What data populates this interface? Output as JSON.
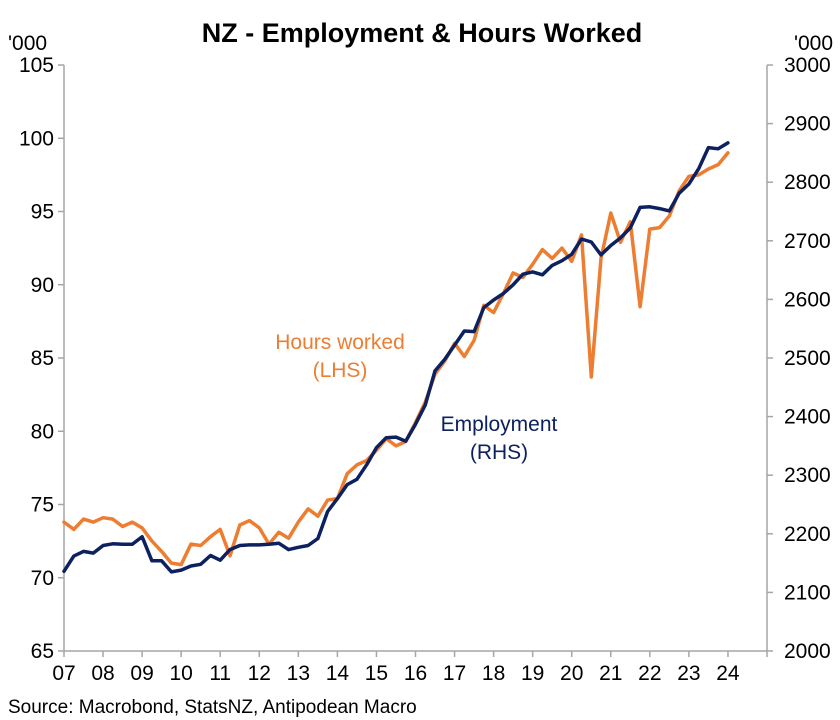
{
  "chart_data": {
    "type": "line",
    "title": "NZ - Employment & Hours Worked",
    "y_left": {
      "unit": "'000",
      "min": 65,
      "max": 105,
      "ticks": [
        65,
        70,
        75,
        80,
        85,
        90,
        95,
        100,
        105
      ]
    },
    "y_right": {
      "unit": "'000",
      "min": 2000,
      "max": 3000,
      "ticks": [
        2000,
        2100,
        2200,
        2300,
        2400,
        2500,
        2600,
        2700,
        2800,
        2900,
        3000
      ]
    },
    "x": {
      "min": 2007.0,
      "max": 2025.0,
      "tick_labels": [
        "07",
        "08",
        "09",
        "10",
        "11",
        "12",
        "13",
        "14",
        "15",
        "16",
        "17",
        "18",
        "19",
        "20",
        "21",
        "22",
        "23",
        "24"
      ]
    },
    "grid": false,
    "colors": {
      "hours": "#ED7D31",
      "employment": "#0D2160"
    },
    "annotations": {
      "hours": [
        "Hours worked",
        "(LHS)"
      ],
      "employment": [
        "Employment",
        "(RHS)"
      ]
    },
    "series": [
      {
        "name": "Hours worked (LHS)",
        "axis": "left",
        "x": [
          2007.0,
          2007.25,
          2007.5,
          2007.75,
          2008.0,
          2008.25,
          2008.5,
          2008.75,
          2009.0,
          2009.25,
          2009.5,
          2009.75,
          2010.0,
          2010.25,
          2010.5,
          2010.75,
          2011.0,
          2011.25,
          2011.5,
          2011.75,
          2012.0,
          2012.25,
          2012.5,
          2012.75,
          2013.0,
          2013.25,
          2013.5,
          2013.75,
          2014.0,
          2014.25,
          2014.5,
          2014.75,
          2015.0,
          2015.25,
          2015.5,
          2015.75,
          2016.0,
          2016.25,
          2016.5,
          2016.75,
          2017.0,
          2017.25,
          2017.5,
          2017.75,
          2018.0,
          2018.25,
          2018.5,
          2018.75,
          2019.0,
          2019.25,
          2019.5,
          2019.75,
          2020.0,
          2020.25,
          2020.5,
          2020.75,
          2021.0,
          2021.25,
          2021.5,
          2021.75,
          2022.0,
          2022.25,
          2022.5,
          2022.75,
          2023.0,
          2023.25,
          2023.5,
          2023.75,
          2024.0
        ],
        "values": [
          73.8,
          73.3,
          74.0,
          73.8,
          74.1,
          74.0,
          73.5,
          73.8,
          73.4,
          72.5,
          71.8,
          71.0,
          70.9,
          72.3,
          72.2,
          72.8,
          73.3,
          71.5,
          73.6,
          73.9,
          73.4,
          72.3,
          73.1,
          72.7,
          73.8,
          74.7,
          74.2,
          75.3,
          75.4,
          77.1,
          77.7,
          78.0,
          78.7,
          79.5,
          79.0,
          79.3,
          80.6,
          82.0,
          83.9,
          84.8,
          86.0,
          85.1,
          86.2,
          88.6,
          88.1,
          89.4,
          90.8,
          90.5,
          91.4,
          92.4,
          91.8,
          92.5,
          91.6,
          93.4,
          83.7,
          91.8,
          94.9,
          92.9,
          94.3,
          88.5,
          93.8,
          93.9,
          94.7,
          96.4,
          97.4,
          97.5,
          97.9,
          98.2,
          99.0
        ]
      },
      {
        "name": "Employment (RHS)",
        "axis": "right",
        "x": [
          2007.0,
          2007.25,
          2007.5,
          2007.75,
          2008.0,
          2008.25,
          2008.5,
          2008.75,
          2009.0,
          2009.25,
          2009.5,
          2009.75,
          2010.0,
          2010.25,
          2010.5,
          2010.75,
          2011.0,
          2011.25,
          2011.5,
          2011.75,
          2012.0,
          2012.25,
          2012.5,
          2012.75,
          2013.0,
          2013.25,
          2013.5,
          2013.75,
          2014.0,
          2014.25,
          2014.5,
          2014.75,
          2015.0,
          2015.25,
          2015.5,
          2015.75,
          2016.0,
          2016.25,
          2016.5,
          2016.75,
          2017.0,
          2017.25,
          2017.5,
          2017.75,
          2018.0,
          2018.25,
          2018.5,
          2018.75,
          2019.0,
          2019.25,
          2019.5,
          2019.75,
          2020.0,
          2020.25,
          2020.5,
          2020.75,
          2021.0,
          2021.25,
          2021.5,
          2021.75,
          2022.0,
          2022.25,
          2022.5,
          2022.75,
          2023.0,
          2023.25,
          2023.5,
          2023.75,
          2024.0
        ],
        "values": [
          2136,
          2162,
          2170,
          2167,
          2180,
          2183,
          2182,
          2182,
          2195,
          2154,
          2154,
          2135,
          2138,
          2145,
          2148,
          2163,
          2155,
          2173,
          2180,
          2181,
          2181,
          2182,
          2184,
          2173,
          2177,
          2180,
          2192,
          2238,
          2260,
          2284,
          2293,
          2318,
          2347,
          2364,
          2365,
          2358,
          2387,
          2420,
          2478,
          2498,
          2522,
          2546,
          2545,
          2586,
          2599,
          2610,
          2625,
          2643,
          2647,
          2642,
          2658,
          2666,
          2677,
          2703,
          2698,
          2676,
          2692,
          2705,
          2722,
          2757,
          2758,
          2755,
          2751,
          2781,
          2797,
          2823,
          2859,
          2857,
          2867
        ]
      }
    ]
  },
  "source": "Source: Macrobond, StatsNZ, Antipodean Macro"
}
